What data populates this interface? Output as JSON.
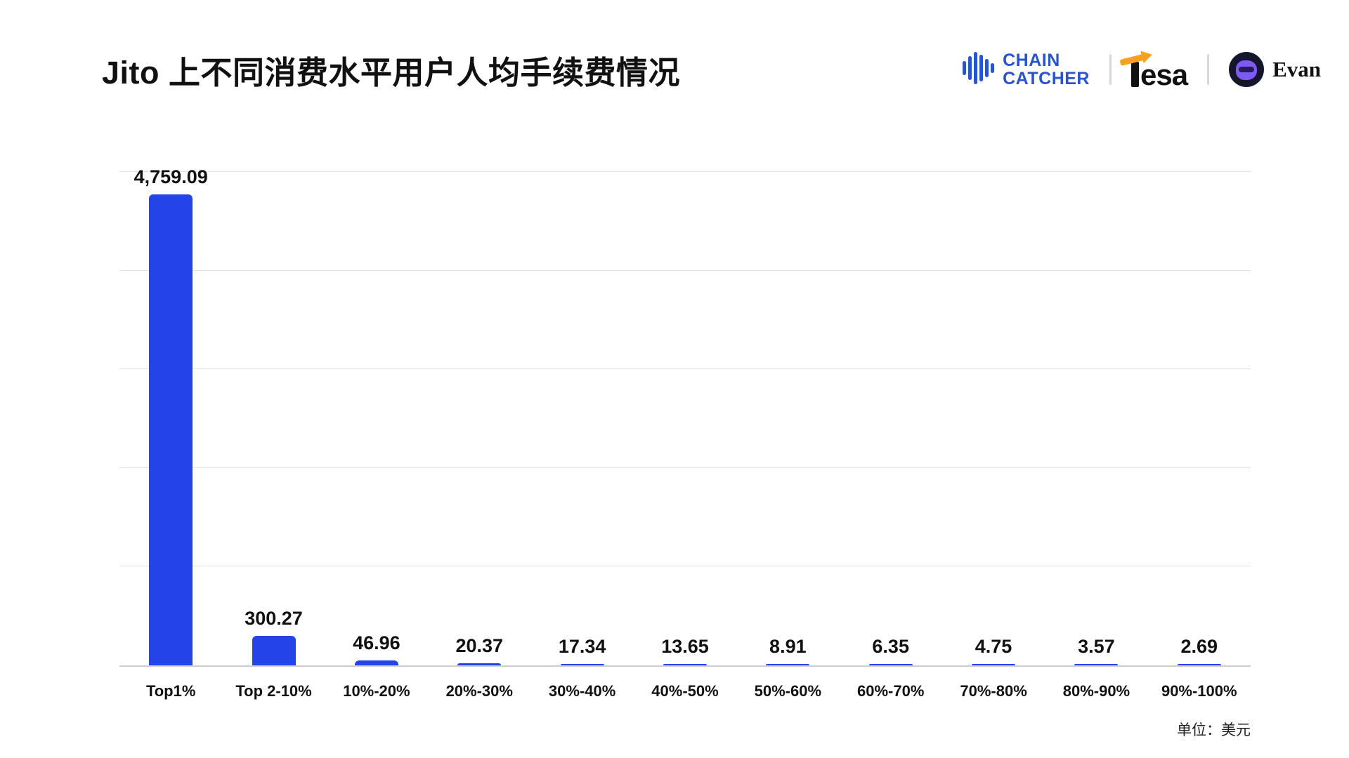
{
  "header": {
    "title": "Jito 上不同消费水平用户人均手续费情况",
    "chaincatcher": {
      "line1": "CHAIN",
      "line2": "CATCHER"
    },
    "tesa": {
      "text": "esa"
    },
    "evan": {
      "name": "Evan"
    }
  },
  "chart_data": {
    "type": "bar",
    "title": "Jito 上不同消费水平用户人均手续费情况",
    "categories": [
      "Top1%",
      "Top 2-10%",
      "10%-20%",
      "20%-30%",
      "30%-40%",
      "40%-50%",
      "50%-60%",
      "60%-70%",
      "70%-80%",
      "80%-90%",
      "90%-100%"
    ],
    "values": [
      4759.09,
      300.27,
      46.96,
      20.37,
      17.34,
      13.65,
      8.91,
      6.35,
      4.75,
      3.57,
      2.69
    ],
    "value_labels": [
      "4,759.09",
      "300.27",
      "46.96",
      "20.37",
      "17.34",
      "13.65",
      "8.91",
      "6.35",
      "4.75",
      "3.57",
      "2.69"
    ],
    "xlabel": "",
    "ylabel": "",
    "ylim": [
      0,
      5000
    ],
    "gridline_values": [
      1000,
      2000,
      3000,
      4000,
      5000
    ],
    "grid": true,
    "legend_position": "none",
    "bar_color": "#2443E8",
    "unit_note": "单位：美元"
  },
  "colors": {
    "bar": "#2443E8",
    "chaincatcher_blue": "#2A54CC",
    "arrow_orange": "#F6A21E",
    "gridline": "#E2E2E2",
    "text": "#111111"
  }
}
